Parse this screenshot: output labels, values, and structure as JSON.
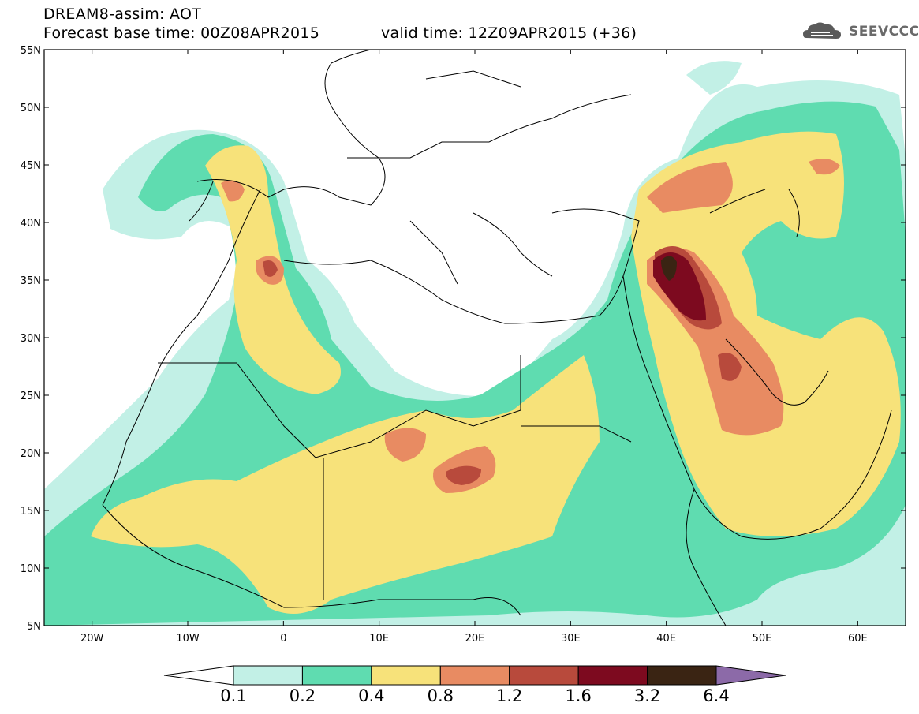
{
  "header": {
    "line1": "DREAM8-assim: AOT",
    "line2": "Forecast base time: 00Z08APR2015",
    "valid": "valid time: 12Z09APR2015 (+36)"
  },
  "logo": {
    "text": "SEEVCCC",
    "icon": "cloud-icon"
  },
  "axes": {
    "lat_labels": [
      "55N",
      "50N",
      "45N",
      "40N",
      "35N",
      "30N",
      "25N",
      "20N",
      "15N",
      "10N",
      "5N"
    ],
    "lon_labels": [
      "20W",
      "10W",
      "0",
      "10E",
      "20E",
      "30E",
      "40E",
      "50E",
      "60E"
    ]
  },
  "colorbar": {
    "labels": [
      "0.1",
      "0.2",
      "0.4",
      "0.8",
      "1.2",
      "1.6",
      "3.2",
      "6.4"
    ],
    "colors": [
      "#ffffff",
      "#c2f0e6",
      "#5fdcb0",
      "#f7e27a",
      "#e88b62",
      "#b84a3c",
      "#7d0a1f",
      "#3a2413",
      "#8c6aa8"
    ]
  },
  "chart_data": {
    "type": "heatmap",
    "variable": "AOT",
    "xlim": [
      -25,
      65
    ],
    "ylim": [
      5,
      55
    ],
    "levels": [
      0.1,
      0.2,
      0.4,
      0.8,
      1.2,
      1.6,
      3.2,
      6.4
    ],
    "hotspots": [
      {
        "lon": 41,
        "lat": 35.5,
        "max_level": 6.4
      },
      {
        "lon": 48,
        "lat": 26,
        "max_level": 1.6
      },
      {
        "lon": 20,
        "lat": 18.5,
        "max_level": 1.6
      },
      {
        "lon": -1.5,
        "lat": 36,
        "max_level": 1.6
      }
    ]
  }
}
